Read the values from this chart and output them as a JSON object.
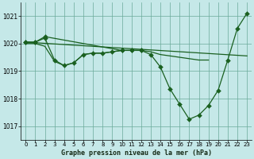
{
  "background_color": "#c5e8e8",
  "grid_color": "#6aaa9a",
  "line_color": "#1a6020",
  "ylim": [
    1016.5,
    1021.5
  ],
  "xlim": [
    -0.5,
    23.5
  ],
  "yticks": [
    1017,
    1018,
    1019,
    1020,
    1021
  ],
  "xticks": [
    0,
    1,
    2,
    3,
    4,
    5,
    6,
    7,
    8,
    9,
    10,
    11,
    12,
    13,
    14,
    15,
    16,
    17,
    18,
    19,
    20,
    21,
    22,
    23
  ],
  "xlabel": "Graphe pression niveau de la mer (hPa)",
  "series_main": {
    "x": [
      0,
      1,
      2,
      10,
      11,
      12,
      13,
      14,
      15,
      16,
      17,
      18,
      19,
      20,
      21,
      22,
      23
    ],
    "y": [
      1020.05,
      1020.05,
      1020.25,
      1019.75,
      1019.75,
      1019.75,
      1019.6,
      1019.15,
      1018.35,
      1017.8,
      1017.25,
      1017.4,
      1017.75,
      1018.3,
      1019.4,
      1020.55,
      1021.1
    ]
  },
  "series_flat_top": {
    "x": [
      0,
      23
    ],
    "y": [
      1020.05,
      1019.55
    ]
  },
  "series_mid": {
    "x": [
      0,
      1,
      2,
      3,
      4,
      5,
      6,
      7,
      8,
      9,
      10,
      11,
      12,
      13,
      14,
      15,
      16,
      17,
      18,
      19
    ],
    "y": [
      1020.0,
      1020.0,
      1019.9,
      1019.35,
      1019.2,
      1019.3,
      1019.6,
      1019.65,
      1019.65,
      1019.7,
      1019.75,
      1019.75,
      1019.75,
      1019.7,
      1019.6,
      1019.55,
      1019.5,
      1019.45,
      1019.4,
      1019.4
    ]
  },
  "series_short": {
    "x": [
      0,
      1,
      2,
      3,
      4,
      5,
      6,
      7,
      8,
      9,
      10,
      11,
      12
    ],
    "y": [
      1020.05,
      1020.05,
      1020.2,
      1019.4,
      1019.2,
      1019.3,
      1019.6,
      1019.65,
      1019.65,
      1019.7,
      1019.75,
      1019.75,
      1019.75
    ]
  }
}
